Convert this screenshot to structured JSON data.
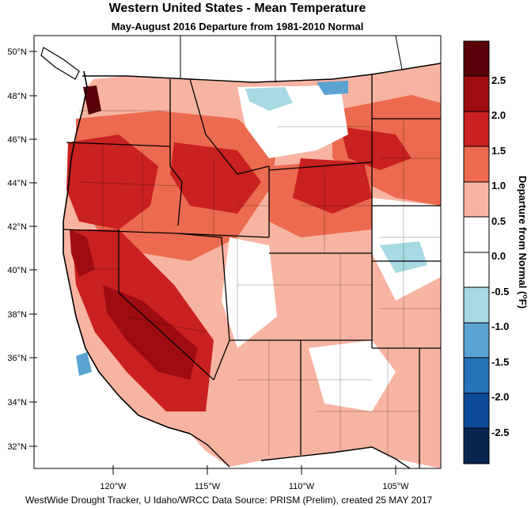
{
  "title": "Western United States - Mean Temperature",
  "subtitle": "May-August 2016  Departure from 1981-2010 Normal",
  "footer": "WestWide Drought Tracker, U Idaho/WRCC Data Source: PRISM (Prelim), created 25 MAY 2017",
  "colorbar": {
    "title_main": "Departure from Normal (",
    "title_unit": "F)",
    "labels": [
      "2.5",
      "2.0",
      "1.5",
      "1.0",
      "0.5",
      "0.0",
      "-0.5",
      "-1.0",
      "-1.5",
      "-2.0",
      "-2.5"
    ],
    "colors": [
      "#5a0008",
      "#9e0c12",
      "#c8211f",
      "#ec6a4f",
      "#f8b4a2",
      "#ffffff",
      "#ffffff",
      "#a6d9e2",
      "#5aa3d3",
      "#2672b8",
      "#0c4a9a",
      "#0a2550"
    ]
  },
  "lat_labels": [
    "50°N",
    "48°N",
    "46°N",
    "44°N",
    "42°N",
    "40°N",
    "38°N",
    "36°N",
    "34°N",
    "32°N"
  ],
  "lon_labels": [
    "120°W",
    "115°W",
    "110°W",
    "105°W"
  ],
  "colors": {
    "warm_dark": "#9e0c12",
    "warm_mid": "#c8211f",
    "warm_light": "#ec6a4f",
    "warm_pale": "#f8b4a2",
    "cool_light": "#a6d9e2",
    "cool_mid": "#5aa3d3"
  }
}
